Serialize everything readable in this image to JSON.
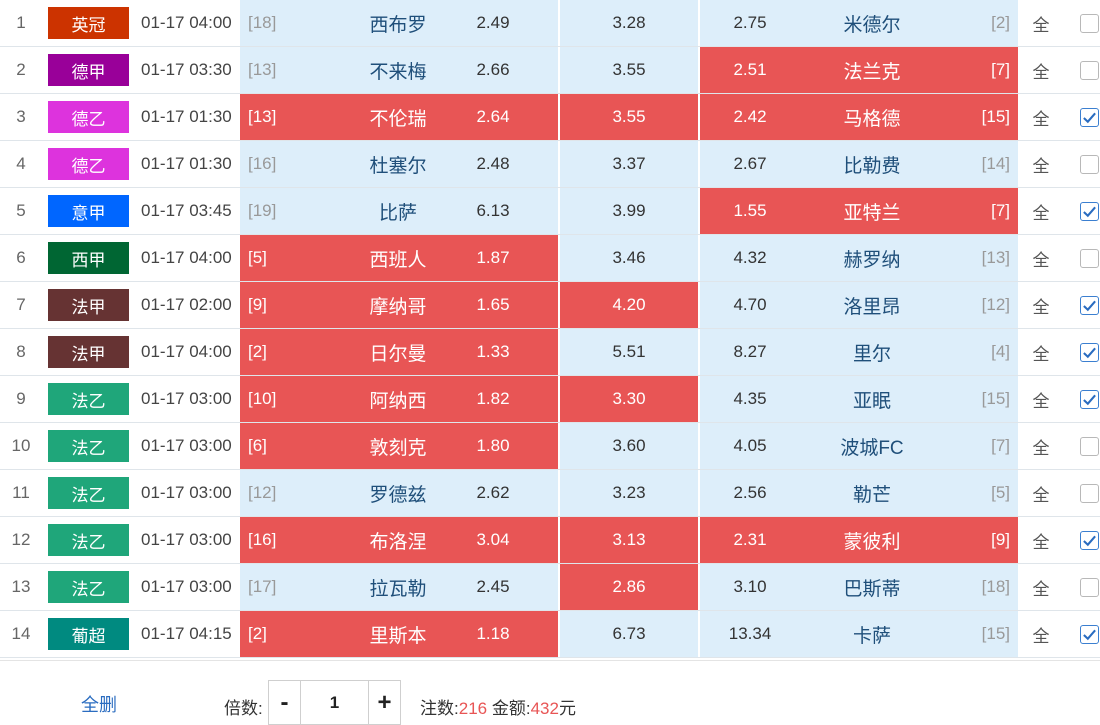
{
  "colors": {
    "selected": "#e85555",
    "unselected": "#ddeefa",
    "team_text": "#1f4f7a",
    "rank_text": "#999999"
  },
  "rows": [
    {
      "idx": "1",
      "league": "英冠",
      "league_color": "#cc3300",
      "time": "01-17 04:00",
      "home_rank": "[18]",
      "home": "西布罗",
      "home_odd": "2.49",
      "draw_odd": "3.28",
      "away_odd": "2.75",
      "away": "米德尔",
      "away_rank": "[2]",
      "sel": [
        false,
        false,
        false
      ],
      "all": "全",
      "checked": false
    },
    {
      "idx": "2",
      "league": "德甲",
      "league_color": "#990099",
      "time": "01-17 03:30",
      "home_rank": "[13]",
      "home": "不来梅",
      "home_odd": "2.66",
      "draw_odd": "3.55",
      "away_odd": "2.51",
      "away": "法兰克",
      "away_rank": "[7]",
      "sel": [
        false,
        false,
        true
      ],
      "all": "全",
      "checked": false
    },
    {
      "idx": "3",
      "league": "德乙",
      "league_color": "#dd33dd",
      "time": "01-17 01:30",
      "home_rank": "[13]",
      "home": "不伦瑞",
      "home_odd": "2.64",
      "draw_odd": "3.55",
      "away_odd": "2.42",
      "away": "马格德",
      "away_rank": "[15]",
      "sel": [
        true,
        true,
        true
      ],
      "all": "全",
      "checked": true
    },
    {
      "idx": "4",
      "league": "德乙",
      "league_color": "#dd33dd",
      "time": "01-17 01:30",
      "home_rank": "[16]",
      "home": "杜塞尔",
      "home_odd": "2.48",
      "draw_odd": "3.37",
      "away_odd": "2.67",
      "away": "比勒费",
      "away_rank": "[14]",
      "sel": [
        false,
        false,
        false
      ],
      "all": "全",
      "checked": false
    },
    {
      "idx": "5",
      "league": "意甲",
      "league_color": "#0066ff",
      "time": "01-17 03:45",
      "home_rank": "[19]",
      "home": "比萨",
      "home_odd": "6.13",
      "draw_odd": "3.99",
      "away_odd": "1.55",
      "away": "亚特兰",
      "away_rank": "[7]",
      "sel": [
        false,
        false,
        true
      ],
      "all": "全",
      "checked": true
    },
    {
      "idx": "6",
      "league": "西甲",
      "league_color": "#006633",
      "time": "01-17 04:00",
      "home_rank": "[5]",
      "home": "西班人",
      "home_odd": "1.87",
      "draw_odd": "3.46",
      "away_odd": "4.32",
      "away": "赫罗纳",
      "away_rank": "[13]",
      "sel": [
        true,
        false,
        false
      ],
      "all": "全",
      "checked": false
    },
    {
      "idx": "7",
      "league": "法甲",
      "league_color": "#663333",
      "time": "01-17 02:00",
      "home_rank": "[9]",
      "home": "摩纳哥",
      "home_odd": "1.65",
      "draw_odd": "4.20",
      "away_odd": "4.70",
      "away": "洛里昂",
      "away_rank": "[12]",
      "sel": [
        true,
        true,
        false
      ],
      "all": "全",
      "checked": true
    },
    {
      "idx": "8",
      "league": "法甲",
      "league_color": "#663333",
      "time": "01-17 04:00",
      "home_rank": "[2]",
      "home": "日尔曼",
      "home_odd": "1.33",
      "draw_odd": "5.51",
      "away_odd": "8.27",
      "away": "里尔",
      "away_rank": "[4]",
      "sel": [
        true,
        false,
        false
      ],
      "all": "全",
      "checked": true
    },
    {
      "idx": "9",
      "league": "法乙",
      "league_color": "#1fa67a",
      "time": "01-17 03:00",
      "home_rank": "[10]",
      "home": "阿纳西",
      "home_odd": "1.82",
      "draw_odd": "3.30",
      "away_odd": "4.35",
      "away": "亚眠",
      "away_rank": "[15]",
      "sel": [
        true,
        true,
        false
      ],
      "all": "全",
      "checked": true
    },
    {
      "idx": "10",
      "league": "法乙",
      "league_color": "#1fa67a",
      "time": "01-17 03:00",
      "home_rank": "[6]",
      "home": "敦刻克",
      "home_odd": "1.80",
      "draw_odd": "3.60",
      "away_odd": "4.05",
      "away": "波城FC",
      "away_rank": "[7]",
      "sel": [
        true,
        false,
        false
      ],
      "all": "全",
      "checked": false
    },
    {
      "idx": "11",
      "league": "法乙",
      "league_color": "#1fa67a",
      "time": "01-17 03:00",
      "home_rank": "[12]",
      "home": "罗德兹",
      "home_odd": "2.62",
      "draw_odd": "3.23",
      "away_odd": "2.56",
      "away": "勒芒",
      "away_rank": "[5]",
      "sel": [
        false,
        false,
        false
      ],
      "all": "全",
      "checked": false
    },
    {
      "idx": "12",
      "league": "法乙",
      "league_color": "#1fa67a",
      "time": "01-17 03:00",
      "home_rank": "[16]",
      "home": "布洛涅",
      "home_odd": "3.04",
      "draw_odd": "3.13",
      "away_odd": "2.31",
      "away": "蒙彼利",
      "away_rank": "[9]",
      "sel": [
        true,
        true,
        true
      ],
      "all": "全",
      "checked": true
    },
    {
      "idx": "13",
      "league": "法乙",
      "league_color": "#1fa67a",
      "time": "01-17 03:00",
      "home_rank": "[17]",
      "home": "拉瓦勒",
      "home_odd": "2.45",
      "draw_odd": "2.86",
      "away_odd": "3.10",
      "away": "巴斯蒂",
      "away_rank": "[18]",
      "sel": [
        false,
        true,
        false
      ],
      "all": "全",
      "checked": false
    },
    {
      "idx": "14",
      "league": "葡超",
      "league_color": "#008a80",
      "time": "01-17 04:15",
      "home_rank": "[2]",
      "home": "里斯本",
      "home_odd": "1.18",
      "draw_odd": "6.73",
      "away_odd": "13.34",
      "away": "卡萨",
      "away_rank": "[15]",
      "sel": [
        true,
        false,
        false
      ],
      "all": "全",
      "checked": true
    }
  ],
  "footer": {
    "clear_label": "全删",
    "multiplier_label": "倍数:",
    "minus": "-",
    "plus": "+",
    "multiplier_value": "1",
    "bets_label": "注数:",
    "bets_value": "216",
    "amount_label": "金额:",
    "amount_value": "432",
    "currency": "元"
  }
}
